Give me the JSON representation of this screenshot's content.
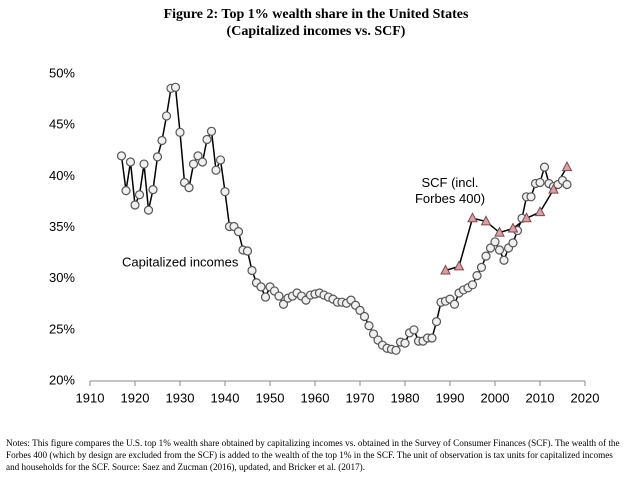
{
  "chart_data": {
    "type": "line",
    "title": "Figure 2: Top 1% wealth share in the United States",
    "subtitle": "(Capitalized incomes vs. SCF)",
    "notes": "Notes: This figure compares the U.S. top 1% wealth share obtained by capitalizing incomes vs. obtained in the Survey of Consumer Finances (SCF). The wealth of the Forbes 400 (which by design are excluded from the SCF) is added to the wealth of the top 1% in the SCF. The unit of observation is tax units for capitalized incomes and households for the SCF. Source: Saez and Zucman (2016), updated, and Bricker et al. (2017).",
    "xlim": [
      1910,
      2020
    ],
    "xticks": [
      1910,
      1920,
      1930,
      1940,
      1950,
      1960,
      1970,
      1980,
      1990,
      2000,
      2010,
      2020
    ],
    "ylim": [
      20,
      50
    ],
    "yticks": [
      {
        "value": 20,
        "label": "20%"
      },
      {
        "value": 25,
        "label": "25%"
      },
      {
        "value": 30,
        "label": "30%"
      },
      {
        "value": 35,
        "label": "35%"
      },
      {
        "value": 40,
        "label": "40%"
      },
      {
        "value": 45,
        "label": "45%"
      },
      {
        "value": 50,
        "label": "50%"
      }
    ],
    "grid": false,
    "series": [
      {
        "name": "Capitalized incomes",
        "color": "#000000",
        "marker": "circle",
        "x": [
          1917,
          1918,
          1919,
          1920,
          1921,
          1922,
          1923,
          1924,
          1925,
          1926,
          1927,
          1928,
          1929,
          1930,
          1931,
          1932,
          1933,
          1934,
          1935,
          1936,
          1937,
          1938,
          1939,
          1940,
          1941,
          1942,
          1943,
          1944,
          1945,
          1946,
          1947,
          1948,
          1949,
          1950,
          1951,
          1952,
          1953,
          1954,
          1955,
          1956,
          1957,
          1958,
          1959,
          1960,
          1961,
          1962,
          1963,
          1964,
          1965,
          1966,
          1967,
          1968,
          1969,
          1970,
          1971,
          1972,
          1973,
          1974,
          1975,
          1976,
          1977,
          1978,
          1979,
          1980,
          1981,
          1982,
          1983,
          1984,
          1985,
          1986,
          1987,
          1988,
          1989,
          1990,
          1991,
          1992,
          1993,
          1994,
          1995,
          1996,
          1997,
          1998,
          1999,
          2000,
          2001,
          2002,
          2003,
          2004,
          2005,
          2006,
          2007,
          2008,
          2009,
          2010,
          2011,
          2012,
          2013,
          2014,
          2015,
          2016
        ],
        "values": [
          42.0,
          38.6,
          41.4,
          37.2,
          38.2,
          41.2,
          36.7,
          38.7,
          41.9,
          43.5,
          45.9,
          48.6,
          48.7,
          44.3,
          39.4,
          38.9,
          41.2,
          42.0,
          41.4,
          43.6,
          44.4,
          40.6,
          41.6,
          38.5,
          35.1,
          35.1,
          34.6,
          32.8,
          32.7,
          30.8,
          29.6,
          29.2,
          28.2,
          29.2,
          28.8,
          28.3,
          27.5,
          28.1,
          28.3,
          28.6,
          28.3,
          27.9,
          28.4,
          28.5,
          28.6,
          28.4,
          28.2,
          28.0,
          27.7,
          27.7,
          27.6,
          27.9,
          27.4,
          26.9,
          26.3,
          25.4,
          24.6,
          24.0,
          23.5,
          23.2,
          23.1,
          23.0,
          23.8,
          23.7,
          24.7,
          25.0,
          23.9,
          23.9,
          24.2,
          24.2,
          25.8,
          27.7,
          27.8,
          28.0,
          27.5,
          28.6,
          28.9,
          29.1,
          29.4,
          30.3,
          31.1,
          32.2,
          33.0,
          33.6,
          32.8,
          31.8,
          33.0,
          33.5,
          34.7,
          35.9,
          38.0,
          38.0,
          39.3,
          39.4,
          40.9,
          39.3,
          39.0,
          39.2,
          39.6,
          39.2
        ]
      },
      {
        "name": "SCF (incl. Forbes 400)",
        "color": "#d9a0a6",
        "marker": "triangle",
        "x": [
          1989,
          1992,
          1995,
          1998,
          2001,
          2004,
          2007,
          2010,
          2013,
          2016
        ],
        "values": [
          30.8,
          31.2,
          35.9,
          35.6,
          34.5,
          34.9,
          35.9,
          36.5,
          38.7,
          40.9
        ]
      }
    ]
  }
}
